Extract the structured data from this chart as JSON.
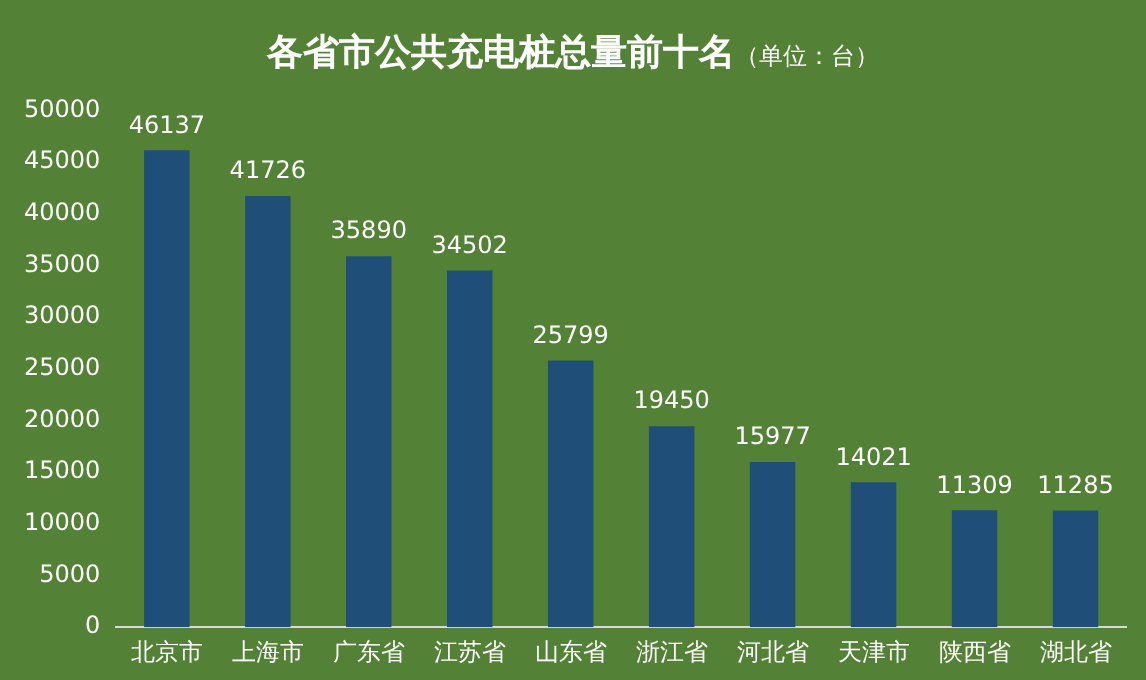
{
  "chart_data": {
    "type": "bar",
    "title": "各省市公共充电桩总量前十名",
    "subtitle": "（单位：台）",
    "categories": [
      "北京市",
      "上海市",
      "广东省",
      "江苏省",
      "山东省",
      "浙江省",
      "河北省",
      "天津市",
      "陕西省",
      "湖北省"
    ],
    "values": [
      46137,
      41726,
      35890,
      34502,
      25799,
      19450,
      15977,
      14021,
      11309,
      11285
    ],
    "color": "#1f4e79",
    "ylim": [
      0,
      50000
    ],
    "yticks": [
      0,
      5000,
      10000,
      15000,
      20000,
      25000,
      30000,
      35000,
      40000,
      45000,
      50000
    ],
    "grid": false,
    "legend": false,
    "data_labels": true
  }
}
